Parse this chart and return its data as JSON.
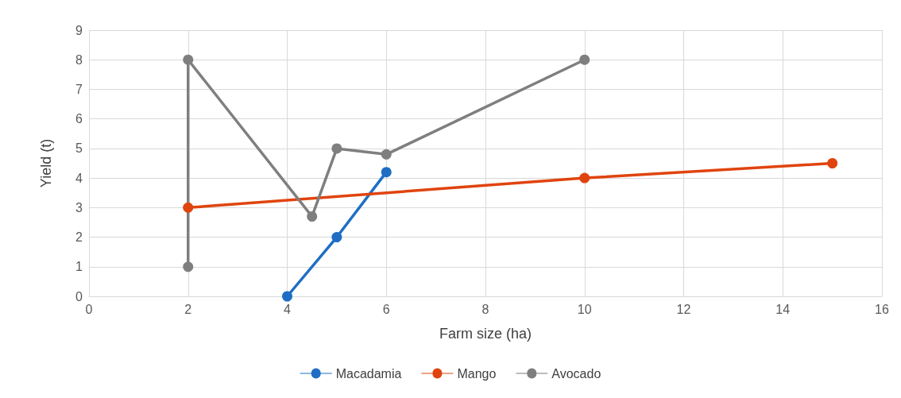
{
  "chart_data": {
    "type": "line",
    "xlabel": "Farm size (ha)",
    "ylabel": "Yield (t)",
    "xlim": [
      0,
      16
    ],
    "xticks": [
      0,
      2,
      4,
      6,
      8,
      10,
      12,
      14,
      16
    ],
    "ylim": [
      0,
      9
    ],
    "yticks": [
      0,
      1,
      2,
      3,
      4,
      5,
      6,
      7,
      8,
      9
    ],
    "grid": true,
    "legend": "bottom",
    "marker": "circle",
    "line_style": "solid",
    "series": [
      {
        "name": "Macadamia",
        "color": "#1f6ec4",
        "x": [
          4,
          5,
          6
        ],
        "values": [
          0,
          2,
          4.2
        ]
      },
      {
        "name": "Mango",
        "color": "#e0440e",
        "x": [
          2,
          10,
          15
        ],
        "values": [
          3,
          4,
          4.5
        ]
      },
      {
        "name": "Avocado",
        "color": "#7f7f7f",
        "x": [
          2,
          2,
          4.5,
          5,
          6,
          10
        ],
        "values": [
          1,
          8,
          2.7,
          5,
          4.8,
          8
        ]
      }
    ]
  }
}
